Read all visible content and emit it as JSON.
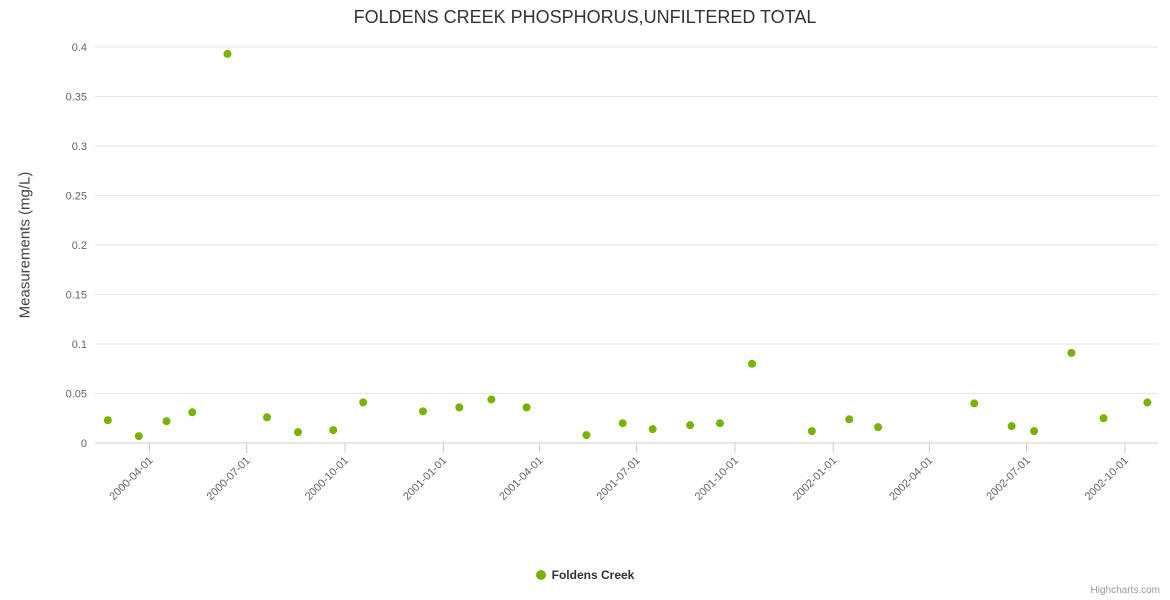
{
  "title": "FOLDENS CREEK PHOSPHORUS,UNFILTERED TOTAL",
  "credits": "Highcharts.com",
  "legend": {
    "items": [
      {
        "label": "Foldens Creek",
        "color": "#77b300"
      }
    ]
  },
  "colors": {
    "point": "#77b300",
    "gridline": "#e6e6e6",
    "axis_line": "#cccccc",
    "tick_label": "#666666",
    "title_text": "#333333"
  },
  "chart_data": {
    "type": "scatter",
    "title": "FOLDENS CREEK PHOSPHORUS,UNFILTERED TOTAL",
    "xlabel": "",
    "ylabel": "Measurements (mg/L)",
    "ylim": [
      0,
      0.4
    ],
    "yticks": [
      0,
      0.05,
      0.1,
      0.15,
      0.2,
      0.25,
      0.3,
      0.35,
      0.4
    ],
    "ytick_labels": [
      "0",
      "0.05",
      "0.1",
      "0.15",
      "0.2",
      "0.25",
      "0.3",
      "0.35",
      "0.4"
    ],
    "xticks": [
      "2000-04-01",
      "2000-07-01",
      "2000-10-01",
      "2001-01-01",
      "2001-04-01",
      "2001-07-01",
      "2001-10-01",
      "2002-01-01",
      "2002-04-01",
      "2002-07-01",
      "2002-10-01"
    ],
    "x_range": [
      "2000-02-10",
      "2002-11-01"
    ],
    "grid": true,
    "legend_position": "bottom",
    "series": [
      {
        "name": "Foldens Creek",
        "color": "#77b300",
        "points": [
          [
            "2000-02-22",
            0.023
          ],
          [
            "2000-03-22",
            0.007
          ],
          [
            "2000-04-17",
            0.022
          ],
          [
            "2000-05-11",
            0.031
          ],
          [
            "2000-06-13",
            0.393
          ],
          [
            "2000-07-20",
            0.026
          ],
          [
            "2000-08-18",
            0.011
          ],
          [
            "2000-09-20",
            0.013
          ],
          [
            "2000-10-18",
            0.041
          ],
          [
            "2000-12-13",
            0.032
          ],
          [
            "2001-01-16",
            0.036
          ],
          [
            "2001-02-15",
            0.044
          ],
          [
            "2001-03-20",
            0.036
          ],
          [
            "2001-05-15",
            0.008
          ],
          [
            "2001-06-18",
            0.02
          ],
          [
            "2001-07-16",
            0.014
          ],
          [
            "2001-08-20",
            0.018
          ],
          [
            "2001-09-17",
            0.02
          ],
          [
            "2001-10-17",
            0.08
          ],
          [
            "2001-12-12",
            0.012
          ],
          [
            "2002-01-16",
            0.024
          ],
          [
            "2002-02-12",
            0.016
          ],
          [
            "2002-05-13",
            0.04
          ],
          [
            "2002-06-17",
            0.017
          ],
          [
            "2002-07-08",
            0.012
          ],
          [
            "2002-08-12",
            0.091
          ],
          [
            "2002-09-11",
            0.025
          ],
          [
            "2002-10-22",
            0.041
          ]
        ]
      }
    ]
  }
}
